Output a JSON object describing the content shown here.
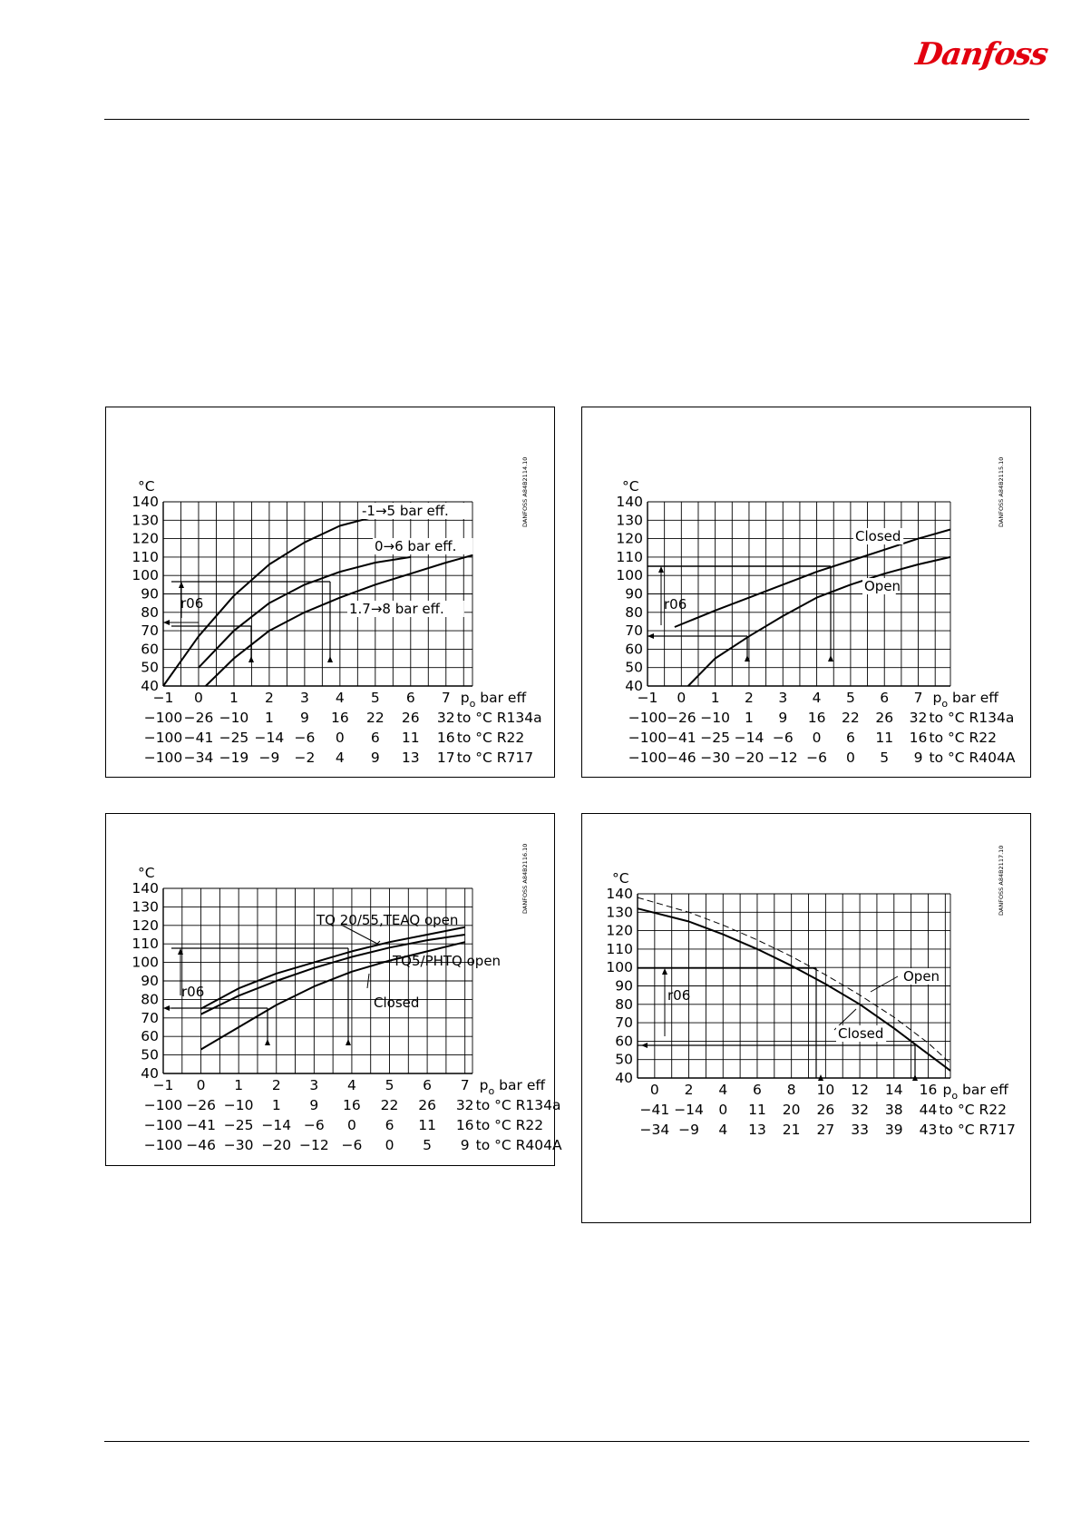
{
  "brand": {
    "logo_text": "Danfoss",
    "color": "#e2000f"
  },
  "charts": [
    {
      "code": "DANFOSS A84B2114.10",
      "y_unit": "°C",
      "x_unit_sub": "o",
      "x_unit_rest": "bar eff",
      "chart_data": {
        "type": "line",
        "x_ticks": [
          -1,
          0,
          1,
          2,
          3,
          4,
          5,
          6,
          7
        ],
        "y_ticks": [
          40,
          50,
          60,
          70,
          80,
          90,
          100,
          110,
          120,
          130,
          140
        ],
        "xlim": [
          -1,
          7.75
        ],
        "ylim": [
          40,
          140
        ],
        "series": [
          {
            "name": "-1→5 bar eff.",
            "x": [
              -1,
              0,
              1,
              2,
              3,
              4,
              5
            ],
            "y": [
              40,
              67,
              89,
              106,
              118,
              127,
              132
            ]
          },
          {
            "name": "0→6 bar eff.",
            "x": [
              0,
              1,
              2,
              3,
              4,
              5,
              6
            ],
            "y": [
              50,
              70,
              85,
              95,
              102,
              107,
              110
            ]
          },
          {
            "name": "1.7→8 bar eff.",
            "x": [
              0.2,
              1,
              2,
              3,
              4,
              5,
              6,
              7,
              7.75
            ],
            "y": [
              40,
              55,
              70,
              80,
              88,
              95,
              101,
              107,
              111
            ]
          }
        ],
        "annotation": "r06",
        "scales": [
          {
            "values": [
              "-100",
              "-26",
              "-10",
              "1",
              "9",
              "16",
              "22",
              "26",
              "32"
            ],
            "label": "to °C R134a"
          },
          {
            "values": [
              "-100",
              "-41",
              "-25",
              "-14",
              "-6",
              "0",
              "6",
              "11",
              "16"
            ],
            "label": "to °C R22"
          },
          {
            "values": [
              "-100",
              "-34",
              "-19",
              "-9",
              "-2",
              "4",
              "9",
              "13",
              "17"
            ],
            "label": "to °C R717"
          }
        ]
      }
    },
    {
      "code": "DANFOSS A84B2115.10",
      "y_unit": "°C",
      "x_unit_sub": "o",
      "x_unit_rest": "bar eff",
      "chart_data": {
        "type": "line",
        "x_ticks": [
          -1,
          0,
          1,
          2,
          3,
          4,
          5,
          6,
          7
        ],
        "y_ticks": [
          40,
          50,
          60,
          70,
          80,
          90,
          100,
          110,
          120,
          130,
          140
        ],
        "xlim": [
          -1,
          7.95
        ],
        "ylim": [
          40,
          140
        ],
        "series": [
          {
            "name": "Closed",
            "x": [
              -0.2,
              1,
              2,
              3,
              4,
              5,
              6,
              7,
              7.95
            ],
            "y": [
              72,
              81,
              88,
              95,
              102,
              108,
              114,
              120,
              125
            ]
          },
          {
            "name": "Open",
            "x": [
              0.2,
              1,
              2,
              3,
              4,
              5,
              6,
              7,
              7.95
            ],
            "y": [
              40,
              55,
              67,
              78,
              88,
              95,
              101,
              106,
              110
            ]
          }
        ],
        "annotation": "r06",
        "scales": [
          {
            "values": [
              "-100",
              "-26",
              "-10",
              "1",
              "9",
              "16",
              "22",
              "26",
              "32"
            ],
            "label": "to °C R134a"
          },
          {
            "values": [
              "-100",
              "-41",
              "-25",
              "-14",
              "-6",
              "0",
              "6",
              "11",
              "16"
            ],
            "label": "to °C R22"
          },
          {
            "values": [
              "-100",
              "-46",
              "-30",
              "-20",
              "-12",
              "-6",
              "0",
              "5",
              "9"
            ],
            "label": "to °C R404A"
          }
        ]
      }
    },
    {
      "code": "DANFOSS A84B2116.10",
      "y_unit": "°C",
      "x_unit_sub": "o",
      "x_unit_rest": "bar eff",
      "chart_data": {
        "type": "line",
        "x_ticks": [
          -1,
          0,
          1,
          2,
          3,
          4,
          5,
          6,
          7
        ],
        "y_ticks": [
          40,
          50,
          60,
          70,
          80,
          90,
          100,
          110,
          120,
          130,
          140
        ],
        "xlim": [
          -1,
          7.2
        ],
        "ylim": [
          40,
          140
        ],
        "series": [
          {
            "name": "TQ 20/55,TEAQ open",
            "x": [
              0,
              1,
              2,
              3,
              4,
              5,
              6,
              7
            ],
            "y": [
              75,
              86,
              94,
              100,
              106,
              111,
              115,
              119
            ]
          },
          {
            "name": "TQ5/PHTQ open",
            "x": [
              0,
              1,
              2,
              3,
              4,
              5,
              6,
              7
            ],
            "y": [
              72,
              82,
              90,
              97,
              103,
              108,
              112,
              115
            ]
          },
          {
            "name": "Closed",
            "x": [
              0,
              1,
              2,
              3,
              4,
              5,
              6,
              7
            ],
            "y": [
              53,
              65,
              77,
              87,
              95,
              101,
              106,
              111
            ]
          }
        ],
        "annotation": "r06",
        "scales": [
          {
            "values": [
              "-100",
              "-26",
              "-10",
              "1",
              "9",
              "16",
              "22",
              "26",
              "32"
            ],
            "label": "to °C R134a"
          },
          {
            "values": [
              "-100",
              "-41",
              "-25",
              "-14",
              "-6",
              "0",
              "6",
              "11",
              "16"
            ],
            "label": "to °C R22"
          },
          {
            "values": [
              "-100",
              "-46",
              "-30",
              "-20",
              "-12",
              "-6",
              "0",
              "5",
              "9"
            ],
            "label": "to °C R404A"
          }
        ]
      }
    },
    {
      "code": "DANFOSS A84B2117.10",
      "y_unit": "°C",
      "x_unit_sub": "o",
      "x_unit_rest": "bar eff",
      "chart_data": {
        "type": "line",
        "x_ticks": [
          0,
          2,
          4,
          6,
          8,
          10,
          12,
          14,
          16
        ],
        "y_ticks": [
          40,
          50,
          60,
          70,
          80,
          90,
          100,
          110,
          120,
          130,
          140
        ],
        "xlim": [
          -1,
          17.3
        ],
        "ylim": [
          40,
          140
        ],
        "series": [
          {
            "name": "Closed",
            "x": [
              -1,
              2,
              4,
              6,
              8,
              10,
              12,
              14,
              16,
              17.3
            ],
            "y": [
              132,
              125,
              118,
              110,
              101,
              91,
              80,
              67,
              53,
              44
            ]
          },
          {
            "name": "Open",
            "x": [
              -1,
              2,
              4,
              6,
              8,
              10,
              12,
              14,
              16,
              17.3
            ],
            "y": [
              138,
              130,
              123,
              115,
              106,
              96,
              85,
              73,
              59,
              48
            ],
            "dashed": true
          }
        ],
        "annotation": "r06",
        "scales": [
          {
            "values": [
              "-41",
              "-14",
              "0",
              "11",
              "20",
              "26",
              "32",
              "38",
              "44"
            ],
            "label": "to °C R22"
          },
          {
            "values": [
              "-34",
              "-9",
              "4",
              "13",
              "21",
              "27",
              "33",
              "39",
              "43"
            ],
            "label": "to °C R717"
          }
        ]
      }
    }
  ]
}
